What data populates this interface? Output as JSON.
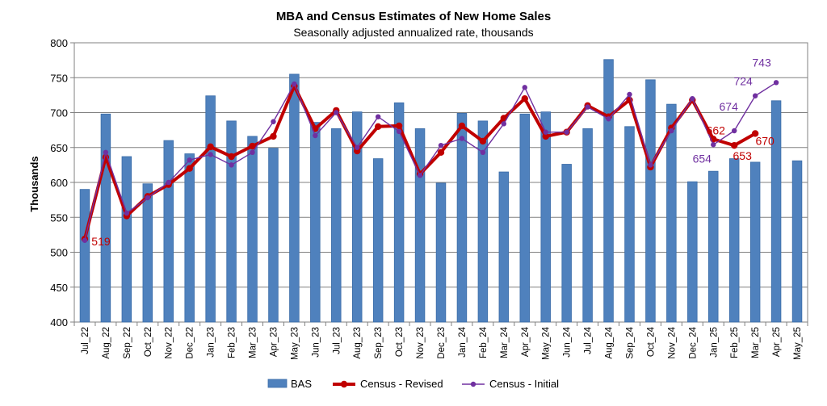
{
  "chart_data": {
    "type": "bar",
    "title": "MBA and Census Estimates of New Home Sales",
    "subtitle": "Seasonally adjusted  annualized  rate, thousands",
    "ylabel": "Thousands",
    "xlabel": "",
    "ylim": [
      400,
      800
    ],
    "yticks": [
      400,
      450,
      500,
      550,
      600,
      650,
      700,
      750,
      800
    ],
    "grid": true,
    "legend_position": "bottom",
    "categories": [
      "Jul_22",
      "Aug_22",
      "Sep_22",
      "Oct_22",
      "Nov_22",
      "Dec_22",
      "Jan_23",
      "Feb_23",
      "Mar_23",
      "Apr_23",
      "May_23",
      "Jun_23",
      "Jul_23",
      "Aug_23",
      "Sep_23",
      "Oct_23",
      "Nov_23",
      "Dec_23",
      "Jan_24",
      "Feb_24",
      "Mar_24",
      "Apr_24",
      "May_24",
      "Jun_24",
      "Jul_24",
      "Aug_24",
      "Sep_24",
      "Oct_24",
      "Nov_24",
      "Dec_24",
      "Jan_25",
      "Feb_25",
      "Mar_25",
      "Apr_25",
      "May_25"
    ],
    "series": [
      {
        "name": "BAS",
        "type": "bar",
        "color": "#4F81BD",
        "values": [
          590,
          698,
          637,
          598,
          660,
          641,
          724,
          688,
          666,
          649,
          755,
          686,
          677,
          701,
          634,
          714,
          677,
          599,
          699,
          688,
          615,
          698,
          701,
          626,
          677,
          776,
          680,
          747,
          712,
          601,
          616,
          634,
          629,
          717,
          631
        ]
      },
      {
        "name": "Census - Revised",
        "type": "line",
        "color": "#C00000",
        "values": [
          519,
          636,
          552,
          580,
          597,
          620,
          651,
          637,
          652,
          666,
          738,
          677,
          703,
          645,
          680,
          681,
          612,
          643,
          681,
          659,
          692,
          720,
          666,
          672,
          710,
          694,
          718,
          622,
          678,
          718,
          662,
          653,
          670,
          null,
          null
        ]
      },
      {
        "name": "Census - Initial",
        "type": "line",
        "color": "#7030A0",
        "values": [
          517,
          643,
          556,
          578,
          600,
          632,
          640,
          625,
          643,
          687,
          741,
          667,
          700,
          650,
          694,
          673,
          610,
          653,
          663,
          643,
          684,
          736,
          672,
          672,
          708,
          691,
          726,
          625,
          674,
          720,
          654,
          674,
          724,
          743,
          null
        ]
      }
    ],
    "annotations": [
      {
        "text": "519",
        "series": "Census - Revised",
        "category": "Jul_22",
        "color": "#C00000"
      },
      {
        "text": "662",
        "series": "Census - Revised",
        "category": "Jan_25",
        "color": "#C00000"
      },
      {
        "text": "653",
        "series": "Census - Revised",
        "category": "Feb_25",
        "color": "#C00000"
      },
      {
        "text": "670",
        "series": "Census - Revised",
        "category": "Mar_25",
        "color": "#C00000"
      },
      {
        "text": "654",
        "series": "Census - Initial",
        "category": "Jan_25",
        "color": "#7030A0"
      },
      {
        "text": "674",
        "series": "Census - Initial",
        "category": "Feb_25",
        "color": "#7030A0"
      },
      {
        "text": "724",
        "series": "Census - Initial",
        "category": "Mar_25",
        "color": "#7030A0"
      },
      {
        "text": "743",
        "series": "Census - Initial",
        "category": "Apr_25",
        "color": "#7030A0"
      }
    ]
  }
}
